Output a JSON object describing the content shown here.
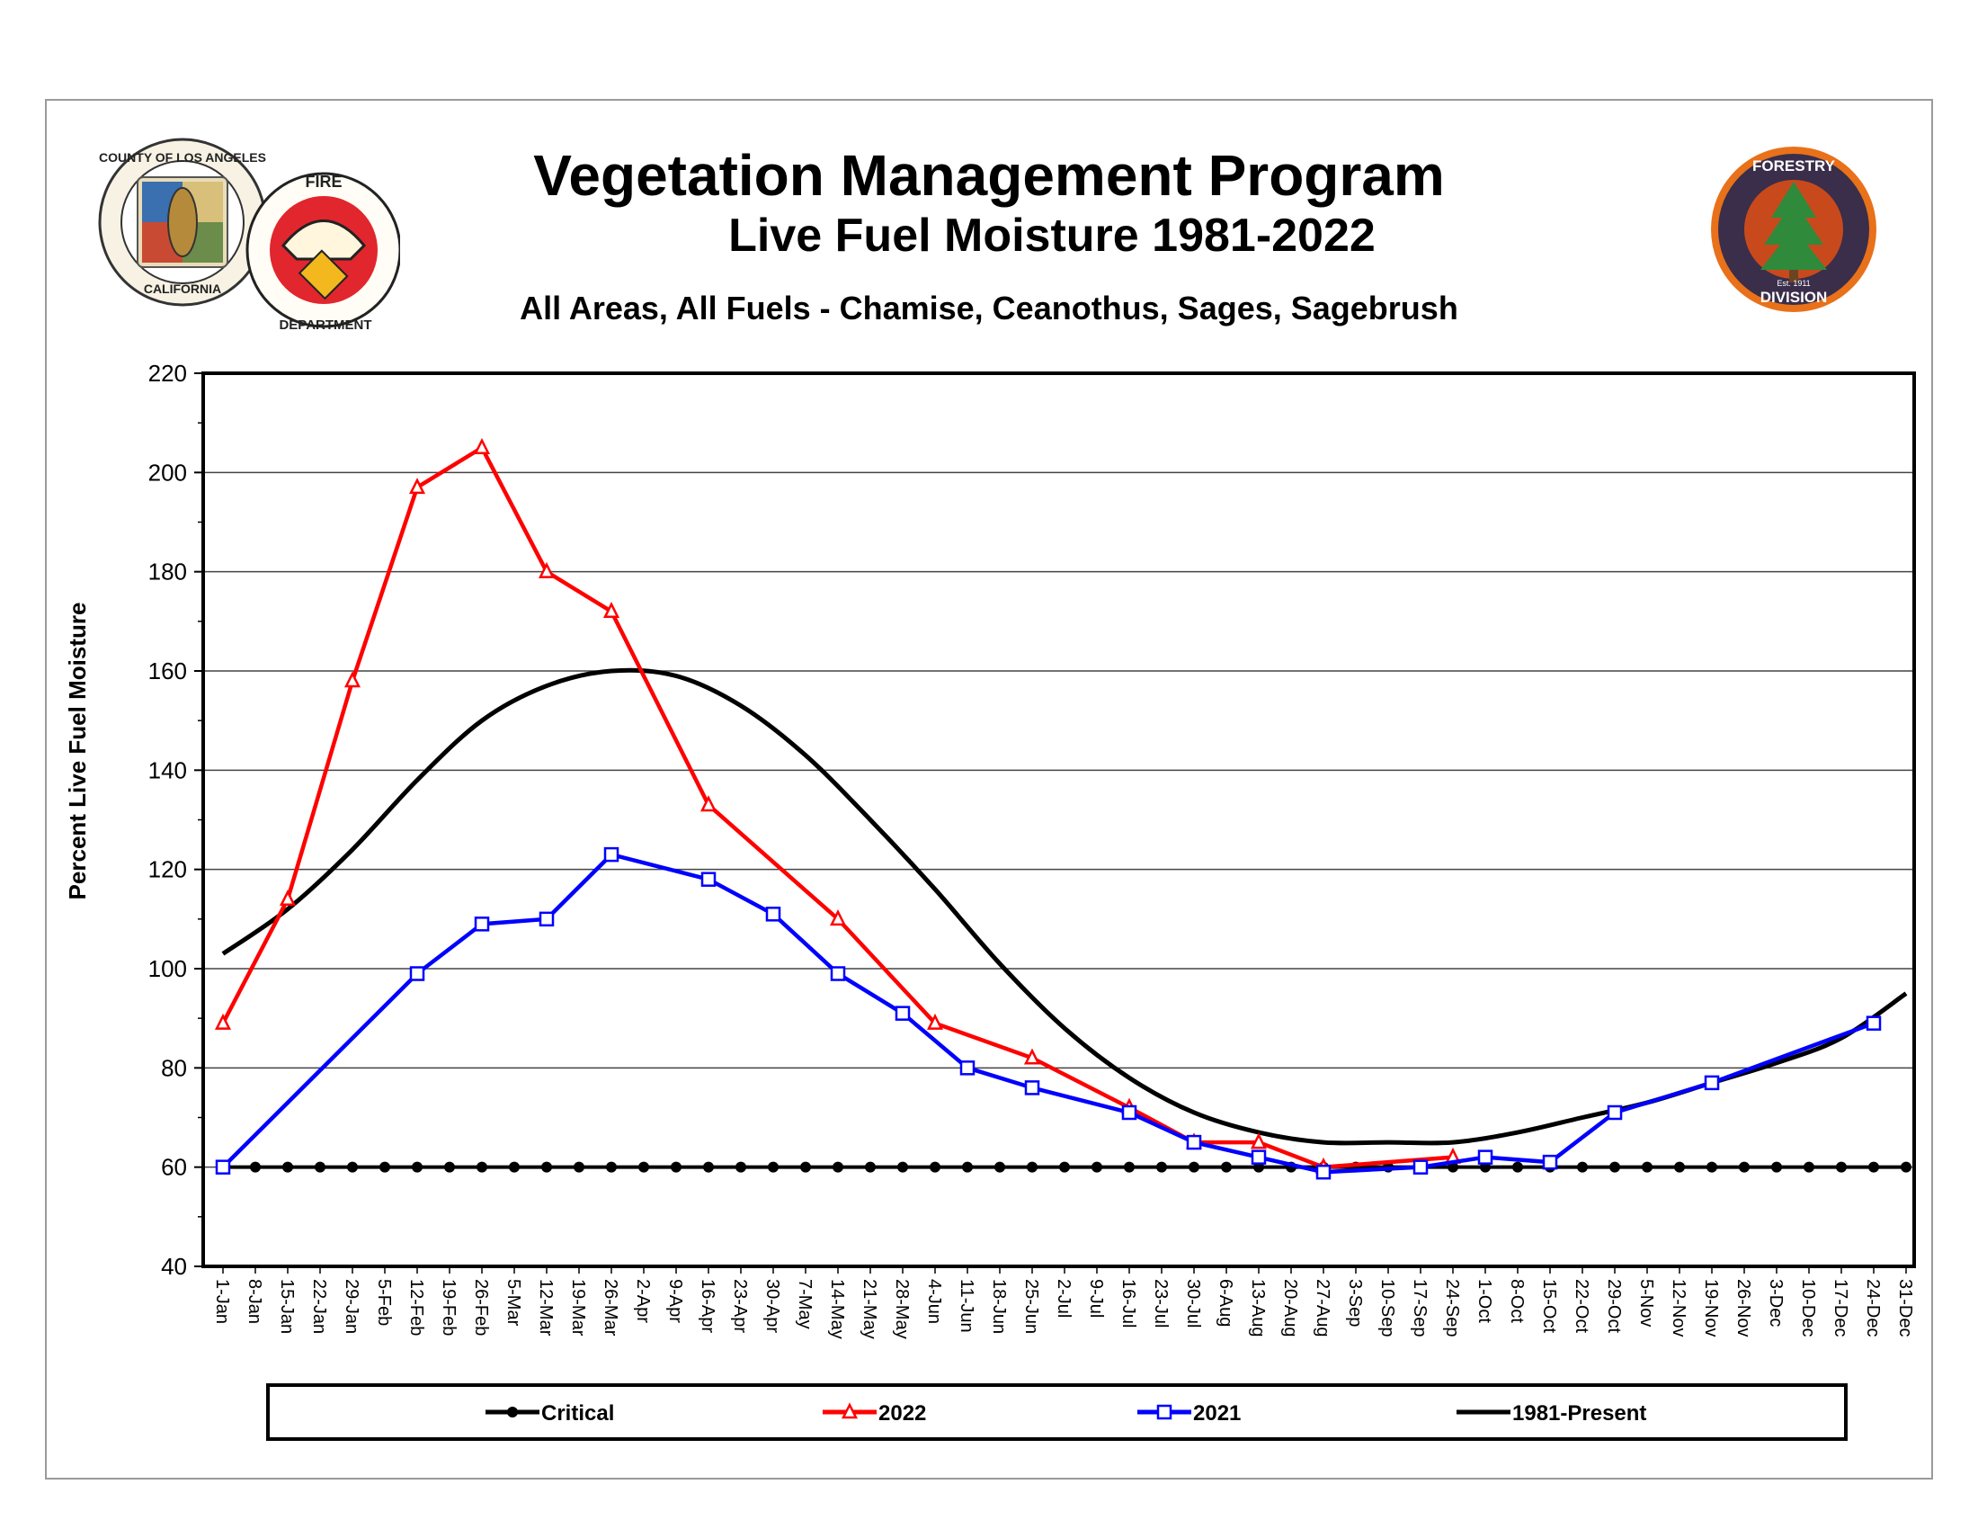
{
  "header": {
    "title": "Vegetation Management Program",
    "subtitle": "Live Fuel Moisture 1981-2022",
    "description": "All Areas, All Fuels - Chamise, Ceanothus, Sages, Sagebrush"
  },
  "logos": {
    "county_seal_top": "COUNTY OF LOS ANGELES",
    "county_seal_bottom": "CALIFORNIA",
    "fire_top": "FIRE",
    "fire_bottom": "DEPARTMENT",
    "forestry_top": "FORESTRY",
    "forestry_bottom": "DIVISION",
    "forestry_est": "Est. 1911"
  },
  "colors": {
    "critical": "#000000",
    "y2022": "#ff0000",
    "y2021": "#0000ff",
    "average": "#000000",
    "grid": "#000000"
  },
  "chart_data": {
    "type": "line",
    "title": "Live Fuel Moisture 1981-2022",
    "ylabel": "Percent Live Fuel Moisture",
    "xlabel": "",
    "ylim": [
      40,
      220
    ],
    "yticks": [
      40,
      60,
      80,
      100,
      120,
      140,
      160,
      180,
      200,
      220
    ],
    "categories": [
      "1-Jan",
      "8-Jan",
      "15-Jan",
      "22-Jan",
      "29-Jan",
      "5-Feb",
      "12-Feb",
      "19-Feb",
      "26-Feb",
      "5-Mar",
      "12-Mar",
      "19-Mar",
      "26-Mar",
      "2-Apr",
      "9-Apr",
      "16-Apr",
      "23-Apr",
      "30-Apr",
      "7-May",
      "14-May",
      "21-May",
      "28-May",
      "4-Jun",
      "11-Jun",
      "18-Jun",
      "25-Jun",
      "2-Jul",
      "9-Jul",
      "16-Jul",
      "23-Jul",
      "30-Jul",
      "6-Aug",
      "13-Aug",
      "20-Aug",
      "27-Aug",
      "3-Sep",
      "10-Sep",
      "17-Sep",
      "24-Sep",
      "1-Oct",
      "8-Oct",
      "15-Oct",
      "22-Oct",
      "29-Oct",
      "5-Nov",
      "12-Nov",
      "19-Nov",
      "26-Nov",
      "3-Dec",
      "10-Dec",
      "17-Dec",
      "24-Dec",
      "31-Dec"
    ],
    "legend": [
      "Critical",
      "2022",
      "2021",
      "1981-Present"
    ],
    "legend_position": "bottom",
    "series": [
      {
        "name": "Critical",
        "marker": "circle",
        "points": [
          [
            0,
            60
          ],
          [
            1,
            60
          ],
          [
            2,
            60
          ],
          [
            3,
            60
          ],
          [
            4,
            60
          ],
          [
            5,
            60
          ],
          [
            6,
            60
          ],
          [
            7,
            60
          ],
          [
            8,
            60
          ],
          [
            9,
            60
          ],
          [
            10,
            60
          ],
          [
            11,
            60
          ],
          [
            12,
            60
          ],
          [
            13,
            60
          ],
          [
            14,
            60
          ],
          [
            15,
            60
          ],
          [
            16,
            60
          ],
          [
            17,
            60
          ],
          [
            18,
            60
          ],
          [
            19,
            60
          ],
          [
            20,
            60
          ],
          [
            21,
            60
          ],
          [
            22,
            60
          ],
          [
            23,
            60
          ],
          [
            24,
            60
          ],
          [
            25,
            60
          ],
          [
            26,
            60
          ],
          [
            27,
            60
          ],
          [
            28,
            60
          ],
          [
            29,
            60
          ],
          [
            30,
            60
          ],
          [
            31,
            60
          ],
          [
            32,
            60
          ],
          [
            33,
            60
          ],
          [
            34,
            60
          ],
          [
            35,
            60
          ],
          [
            36,
            60
          ],
          [
            37,
            60
          ],
          [
            38,
            60
          ],
          [
            39,
            60
          ],
          [
            40,
            60
          ],
          [
            41,
            60
          ],
          [
            42,
            60
          ],
          [
            43,
            60
          ],
          [
            44,
            60
          ],
          [
            45,
            60
          ],
          [
            46,
            60
          ],
          [
            47,
            60
          ],
          [
            48,
            60
          ],
          [
            49,
            60
          ],
          [
            50,
            60
          ],
          [
            51,
            60
          ],
          [
            52,
            60
          ]
        ]
      },
      {
        "name": "2022",
        "marker": "triangle",
        "points": [
          [
            0,
            89
          ],
          [
            2,
            114
          ],
          [
            4,
            158
          ],
          [
            6,
            197
          ],
          [
            8,
            205
          ],
          [
            10,
            180
          ],
          [
            12,
            172
          ],
          [
            15,
            133
          ],
          [
            19,
            110
          ],
          [
            22,
            89
          ],
          [
            25,
            82
          ],
          [
            28,
            72
          ],
          [
            30,
            65
          ],
          [
            32,
            65
          ],
          [
            34,
            60
          ],
          [
            38,
            62
          ]
        ]
      },
      {
        "name": "2021",
        "marker": "square",
        "points": [
          [
            0,
            60
          ],
          [
            6,
            99
          ],
          [
            8,
            109
          ],
          [
            10,
            110
          ],
          [
            12,
            123
          ],
          [
            15,
            118
          ],
          [
            17,
            111
          ],
          [
            19,
            99
          ],
          [
            21,
            91
          ],
          [
            23,
            80
          ],
          [
            25,
            76
          ],
          [
            28,
            71
          ],
          [
            30,
            65
          ],
          [
            32,
            62
          ],
          [
            34,
            59
          ],
          [
            37,
            60
          ],
          [
            39,
            62
          ],
          [
            41,
            61
          ],
          [
            43,
            71
          ],
          [
            46,
            77
          ],
          [
            51,
            89
          ]
        ]
      },
      {
        "name": "1981-Present",
        "marker": "none",
        "points": [
          [
            0,
            103
          ],
          [
            2,
            112
          ],
          [
            4,
            124
          ],
          [
            6,
            138
          ],
          [
            8,
            150
          ],
          [
            10,
            157
          ],
          [
            12,
            160
          ],
          [
            14,
            159
          ],
          [
            16,
            153
          ],
          [
            18,
            143
          ],
          [
            20,
            130
          ],
          [
            22,
            116
          ],
          [
            24,
            101
          ],
          [
            26,
            88
          ],
          [
            28,
            78
          ],
          [
            30,
            71
          ],
          [
            32,
            67
          ],
          [
            34,
            65
          ],
          [
            36,
            65
          ],
          [
            38,
            65
          ],
          [
            40,
            67
          ],
          [
            42,
            70
          ],
          [
            44,
            73
          ],
          [
            46,
            77
          ],
          [
            48,
            81
          ],
          [
            50,
            86
          ],
          [
            52,
            95
          ]
        ]
      }
    ]
  }
}
